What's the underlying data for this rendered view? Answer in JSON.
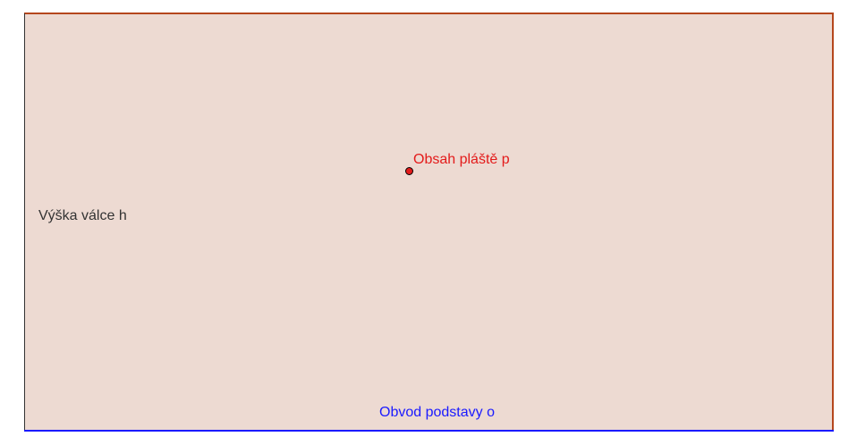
{
  "diagram": {
    "labels": {
      "height": "Výška válce h",
      "area": "Obsah pláště p",
      "perimeter": "Obvod podstavy o"
    },
    "colors": {
      "fill": "#eddad2",
      "top_edge": "#b5471d",
      "right_edge": "#b5471d",
      "left_edge": "#333333",
      "bottom_edge": "#1a1aff",
      "height_label": "#333333",
      "area_label": "#e31b1b",
      "perimeter_label": "#1a1aff",
      "point_fill": "#e31b1b"
    }
  }
}
